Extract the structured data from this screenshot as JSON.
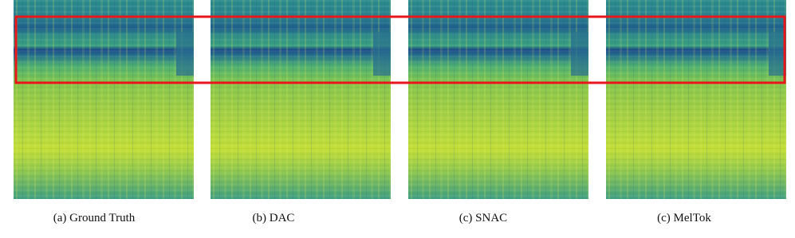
{
  "captions": [
    "(a) Ground Truth",
    "(b) DAC",
    "(c) SNAC",
    "(c) MelTok"
  ]
}
